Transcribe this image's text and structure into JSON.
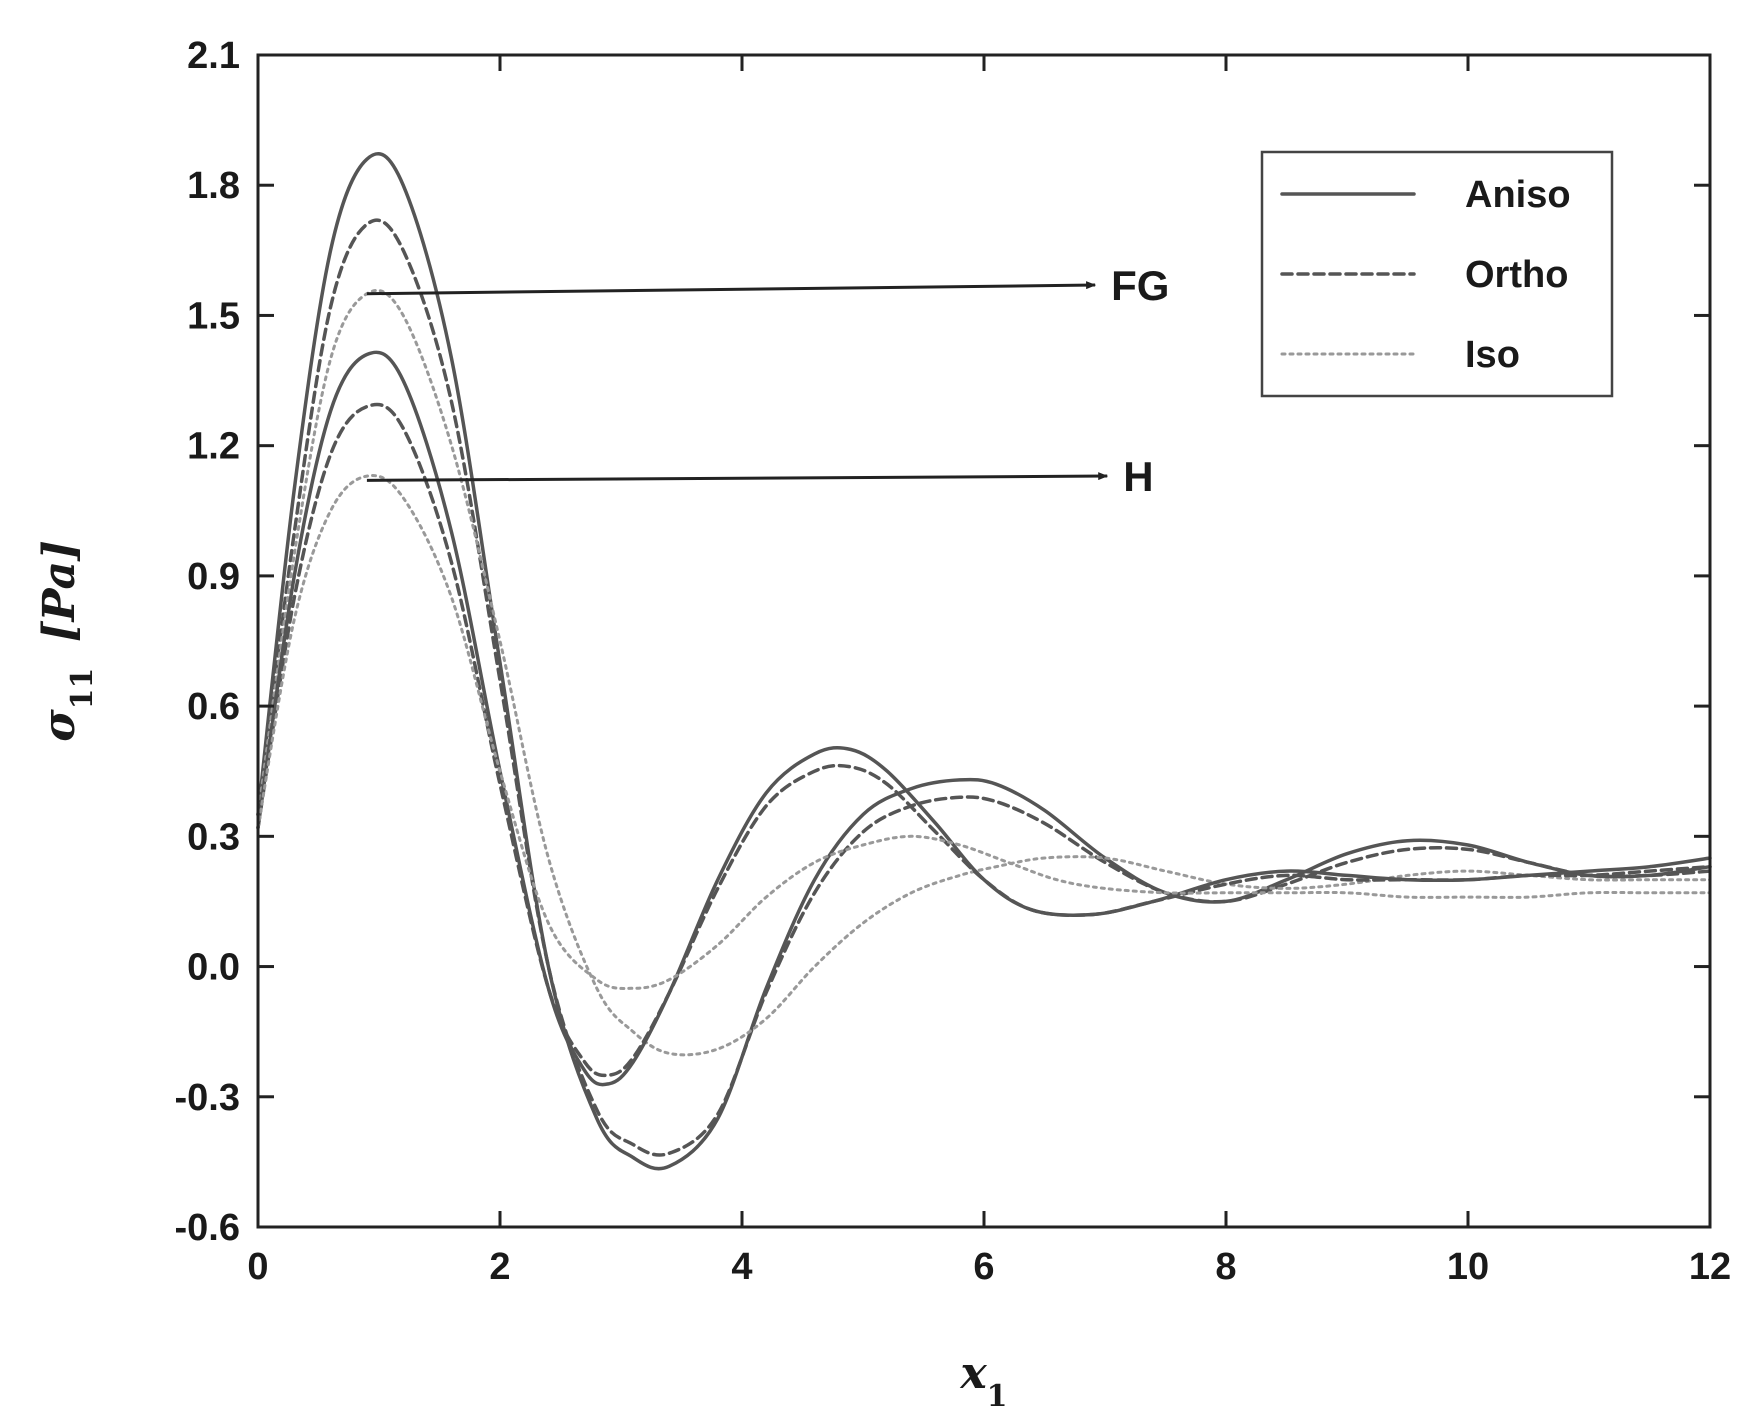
{
  "chart_data": {
    "type": "line",
    "xlabel": "x",
    "xlabel_sub": "1",
    "ylabel": "σ",
    "ylabel_sub": "11",
    "ylabel_unit": "[Pa]",
    "xlim": [
      0,
      12
    ],
    "ylim": [
      -0.6,
      2.1
    ],
    "xticks": [
      0,
      2,
      4,
      6,
      8,
      10,
      12
    ],
    "yticks": [
      -0.6,
      -0.3,
      0.0,
      0.3,
      0.6,
      0.9,
      1.2,
      1.5,
      1.8,
      2.1
    ],
    "ytick_labels": [
      "-0.6",
      "-0.3",
      "0.0",
      "0.3",
      "0.6",
      "0.9",
      "1.2",
      "1.5",
      "1.8",
      "2.1"
    ],
    "grid": false,
    "legend_position": "top-right",
    "legend": [
      {
        "label": "Aniso",
        "style": "solid"
      },
      {
        "label": "Ortho",
        "style": "dashed"
      },
      {
        "label": "Iso",
        "style": "dotted"
      }
    ],
    "annotations": [
      {
        "text": "FG",
        "points_to": [
          0.9,
          1.55
        ],
        "label_at": [
          7.1,
          1.57
        ]
      },
      {
        "text": "H",
        "points_to": [
          0.9,
          1.12
        ],
        "label_at": [
          7.2,
          1.13
        ]
      }
    ],
    "series": [
      {
        "group": "FG",
        "style": "solid",
        "color": "#555555",
        "x": [
          0,
          0.3,
          0.6,
          0.9,
          1.2,
          1.6,
          2.0,
          2.4,
          2.8,
          3.1,
          3.4,
          3.8,
          4.2,
          4.6,
          5.0,
          5.4,
          5.8,
          6.1,
          6.5,
          7.0,
          7.5,
          8.0,
          8.5,
          9.0,
          9.5,
          10.0,
          10.5,
          11.0,
          11.5,
          12.0
        ],
        "y": [
          0.35,
          1.1,
          1.65,
          1.86,
          1.8,
          1.4,
          0.7,
          0.0,
          -0.35,
          -0.44,
          -0.46,
          -0.35,
          -0.05,
          0.2,
          0.35,
          0.41,
          0.43,
          0.42,
          0.36,
          0.25,
          0.17,
          0.15,
          0.2,
          0.26,
          0.29,
          0.28,
          0.24,
          0.21,
          0.21,
          0.23
        ]
      },
      {
        "group": "FG",
        "style": "dashed",
        "color": "#555555",
        "x": [
          0,
          0.3,
          0.6,
          0.9,
          1.2,
          1.6,
          2.0,
          2.4,
          2.8,
          3.1,
          3.4,
          3.8,
          4.2,
          4.6,
          5.0,
          5.4,
          5.8,
          6.1,
          6.5,
          7.0,
          7.5,
          8.0,
          8.5,
          9.0,
          9.5,
          10.0,
          10.5,
          11.0,
          11.5,
          12.0
        ],
        "y": [
          0.35,
          1.0,
          1.52,
          1.71,
          1.65,
          1.3,
          0.66,
          0.0,
          -0.33,
          -0.41,
          -0.43,
          -0.34,
          -0.06,
          0.17,
          0.31,
          0.37,
          0.39,
          0.38,
          0.33,
          0.24,
          0.17,
          0.15,
          0.19,
          0.24,
          0.27,
          0.27,
          0.24,
          0.21,
          0.21,
          0.22
        ]
      },
      {
        "group": "FG",
        "style": "dotted",
        "color": "#999999",
        "x": [
          0,
          0.3,
          0.6,
          0.9,
          1.2,
          1.6,
          2.0,
          2.4,
          2.8,
          3.1,
          3.4,
          3.8,
          4.2,
          4.6,
          5.0,
          5.4,
          5.8,
          6.1,
          6.5,
          7.0,
          7.5,
          8.0,
          8.5,
          9.0,
          9.5,
          10.0,
          10.5,
          11.0,
          11.5,
          12.0
        ],
        "y": [
          0.35,
          0.95,
          1.4,
          1.55,
          1.5,
          1.2,
          0.75,
          0.25,
          -0.05,
          -0.15,
          -0.2,
          -0.19,
          -0.12,
          0.0,
          0.1,
          0.17,
          0.21,
          0.23,
          0.25,
          0.25,
          0.22,
          0.19,
          0.18,
          0.19,
          0.21,
          0.22,
          0.21,
          0.2,
          0.2,
          0.2
        ]
      },
      {
        "group": "H",
        "style": "solid",
        "color": "#555555",
        "x": [
          0,
          0.3,
          0.6,
          0.9,
          1.2,
          1.6,
          2.0,
          2.4,
          2.7,
          2.9,
          3.1,
          3.4,
          3.8,
          4.2,
          4.6,
          4.9,
          5.2,
          5.6,
          6.0,
          6.4,
          6.9,
          7.4,
          8.0,
          8.5,
          9.0,
          9.5,
          10.0,
          10.5,
          11.0,
          11.5,
          12.0
        ],
        "y": [
          0.32,
          0.9,
          1.28,
          1.41,
          1.35,
          1.0,
          0.45,
          -0.05,
          -0.24,
          -0.27,
          -0.22,
          -0.06,
          0.2,
          0.4,
          0.49,
          0.5,
          0.45,
          0.33,
          0.2,
          0.13,
          0.12,
          0.15,
          0.2,
          0.22,
          0.21,
          0.2,
          0.2,
          0.21,
          0.22,
          0.23,
          0.25
        ]
      },
      {
        "group": "H",
        "style": "dashed",
        "color": "#555555",
        "x": [
          0,
          0.3,
          0.6,
          0.9,
          1.2,
          1.6,
          2.0,
          2.4,
          2.7,
          2.9,
          3.1,
          3.4,
          3.8,
          4.2,
          4.6,
          4.9,
          5.2,
          5.6,
          6.0,
          6.4,
          6.9,
          7.4,
          8.0,
          8.5,
          9.0,
          9.5,
          10.0,
          10.5,
          11.0,
          11.5,
          12.0
        ],
        "y": [
          0.32,
          0.85,
          1.18,
          1.29,
          1.24,
          0.93,
          0.42,
          -0.05,
          -0.22,
          -0.25,
          -0.21,
          -0.06,
          0.18,
          0.37,
          0.45,
          0.46,
          0.42,
          0.31,
          0.2,
          0.13,
          0.12,
          0.15,
          0.19,
          0.21,
          0.2,
          0.2,
          0.2,
          0.21,
          0.21,
          0.22,
          0.23
        ]
      },
      {
        "group": "H",
        "style": "dotted",
        "color": "#999999",
        "x": [
          0,
          0.3,
          0.6,
          0.9,
          1.2,
          1.6,
          2.0,
          2.4,
          2.8,
          3.1,
          3.4,
          3.8,
          4.2,
          4.6,
          5.0,
          5.4,
          5.8,
          6.2,
          6.6,
          7.0,
          7.5,
          8.0,
          8.5,
          9.0,
          9.5,
          10.0,
          10.5,
          11.0,
          11.5,
          12.0
        ],
        "y": [
          0.32,
          0.8,
          1.05,
          1.13,
          1.08,
          0.85,
          0.45,
          0.1,
          -0.03,
          -0.05,
          -0.03,
          0.05,
          0.16,
          0.24,
          0.28,
          0.3,
          0.28,
          0.24,
          0.2,
          0.18,
          0.17,
          0.17,
          0.17,
          0.17,
          0.16,
          0.16,
          0.16,
          0.17,
          0.17,
          0.17
        ]
      }
    ]
  }
}
